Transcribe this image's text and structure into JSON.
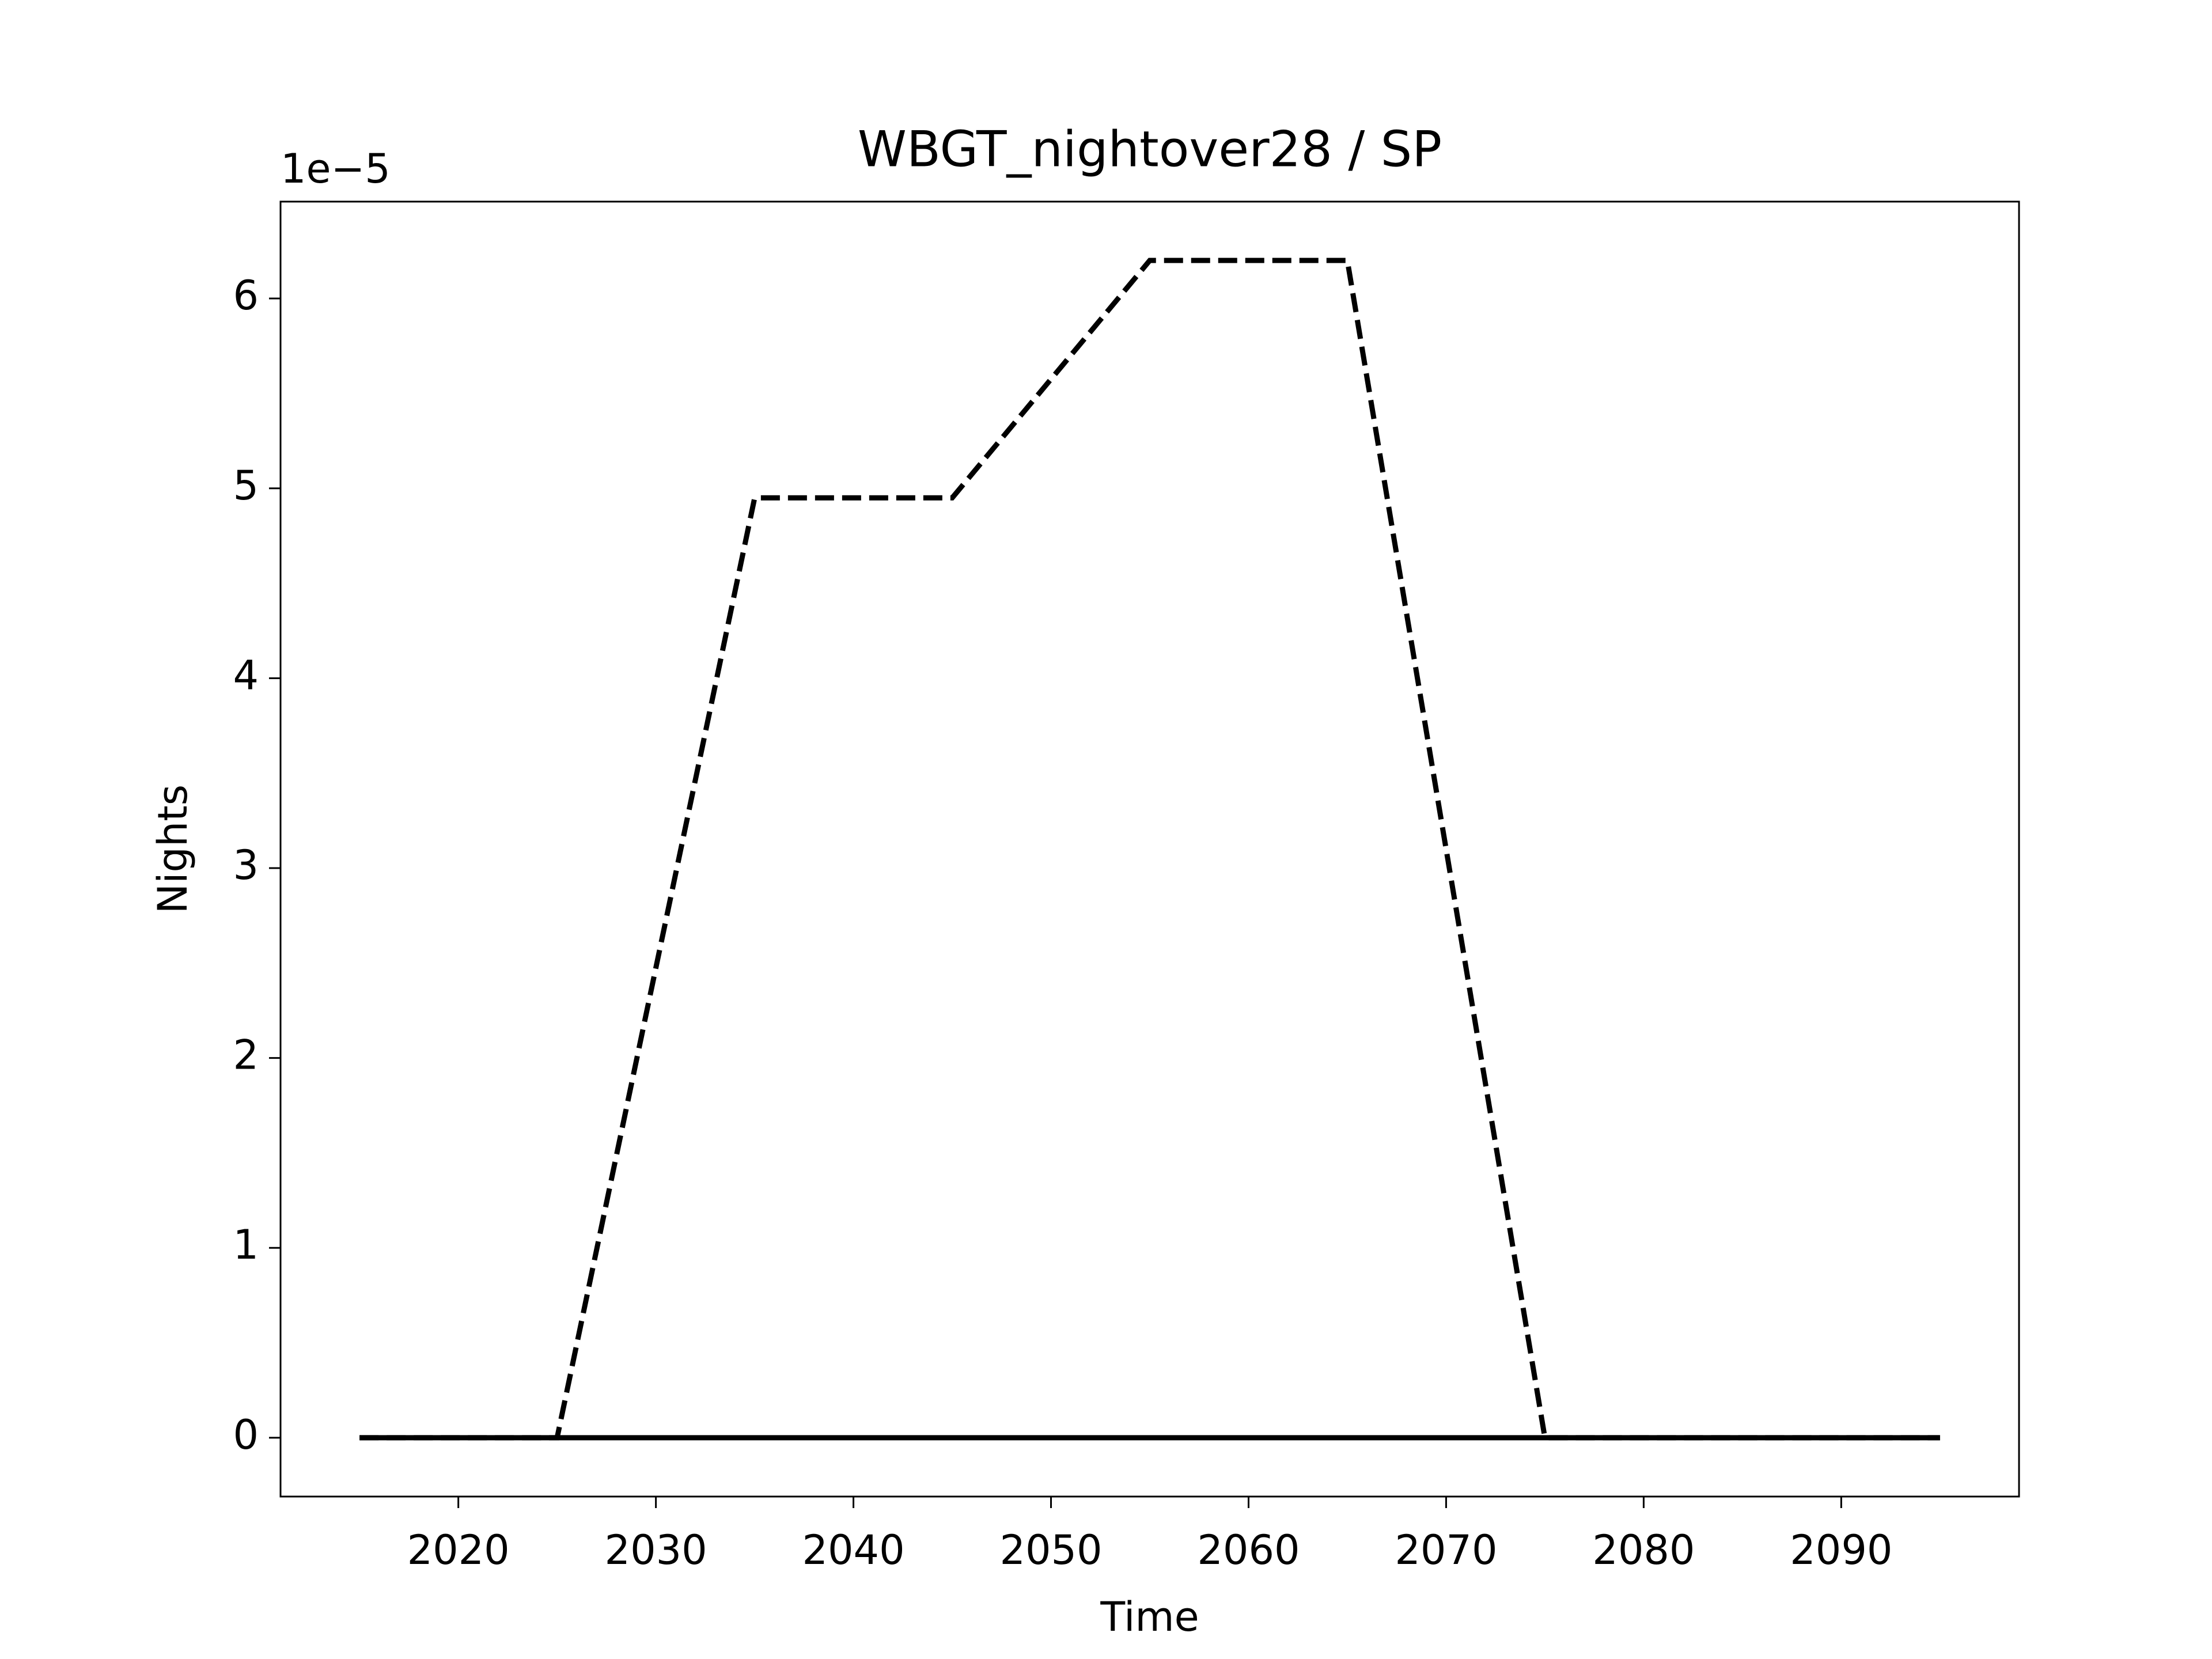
{
  "chart_data": {
    "type": "line",
    "title": "WBGT_nightover28 / SP",
    "x_label": "Time",
    "y_label": "Nights",
    "y_offset_label": "1e−5",
    "x": [
      2015,
      2025,
      2035,
      2045,
      2055,
      2065,
      2075,
      2085,
      2095
    ],
    "series": [
      {
        "color": "#000000",
        "dash": true,
        "values": [
          0,
          0,
          4.95e-05,
          4.95e-05,
          6.2e-05,
          6.2e-05,
          0,
          0,
          0
        ]
      },
      {
        "color": "#000000",
        "dash": false,
        "values": [
          0,
          0,
          0,
          0,
          0,
          0,
          0,
          0,
          0
        ]
      }
    ],
    "xlim": [
      2011,
      2099
    ],
    "xticks": [
      2020,
      2030,
      2040,
      2050,
      2060,
      2070,
      2080,
      2090
    ],
    "ylim": [
      -3.1e-06,
      6.51e-05
    ],
    "yticks": [
      {
        "value": 0,
        "label": "0"
      },
      {
        "value": 1e-05,
        "label": "1"
      },
      {
        "value": 2e-05,
        "label": "2"
      },
      {
        "value": 3e-05,
        "label": "3"
      },
      {
        "value": 4e-05,
        "label": "4"
      },
      {
        "value": 5e-05,
        "label": "5"
      },
      {
        "value": 6e-05,
        "label": "6"
      }
    ],
    "grid": false
  }
}
